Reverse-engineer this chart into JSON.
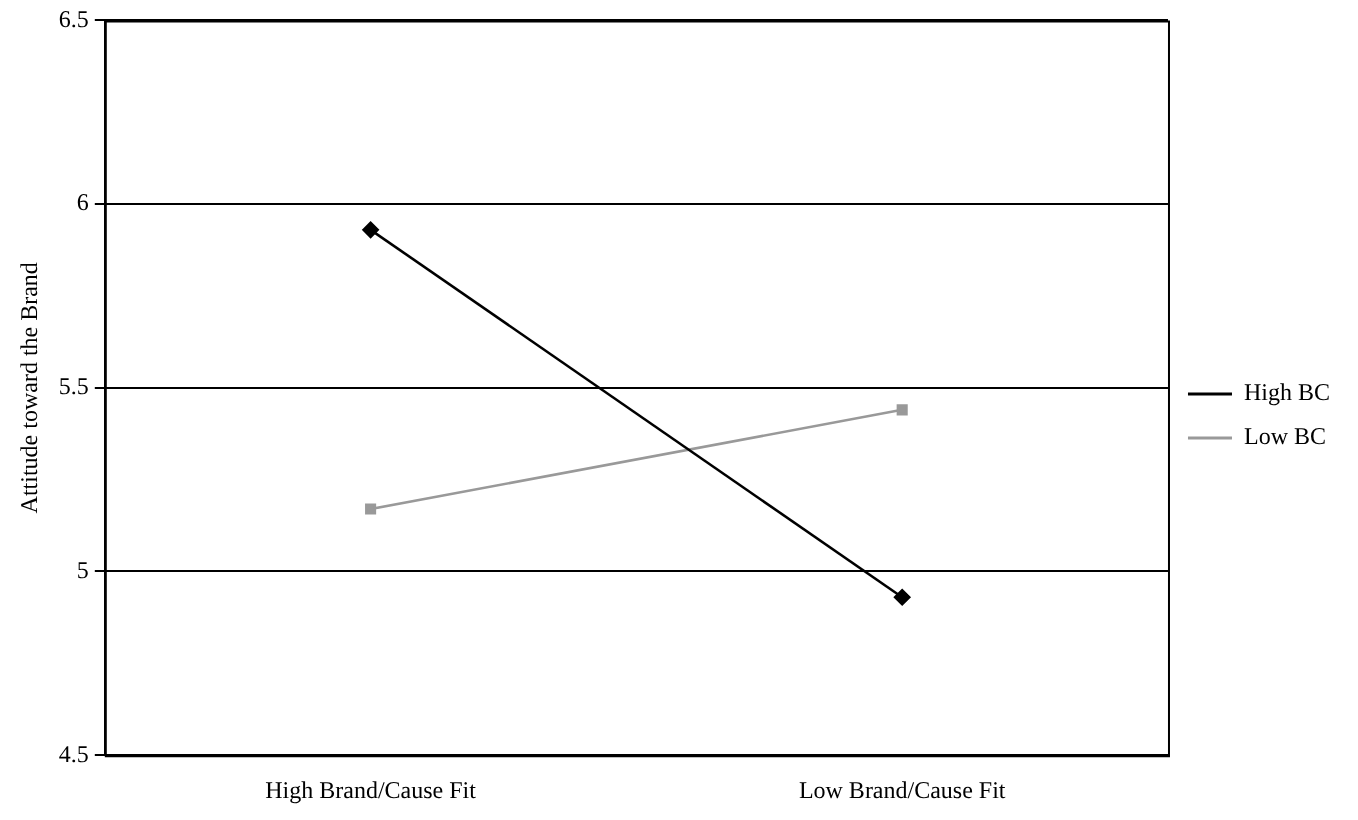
{
  "chart_data": {
    "type": "line",
    "ylabel": "Attitude toward the Brand",
    "categories": [
      "High Brand/Cause Fit",
      "Low Brand/Cause Fit"
    ],
    "series": [
      {
        "name": "High BC",
        "color": "#000000",
        "values": [
          5.93,
          4.93
        ],
        "marker": "diamond"
      },
      {
        "name": "Low BC",
        "color": "#999999",
        "values": [
          5.17,
          5.44
        ],
        "marker": "square"
      }
    ],
    "ylim": [
      4.5,
      6.5
    ],
    "yticks": [
      4.5,
      5,
      5.5,
      6,
      6.5
    ],
    "grid": "y",
    "legend": "right",
    "line_style": "solid"
  }
}
